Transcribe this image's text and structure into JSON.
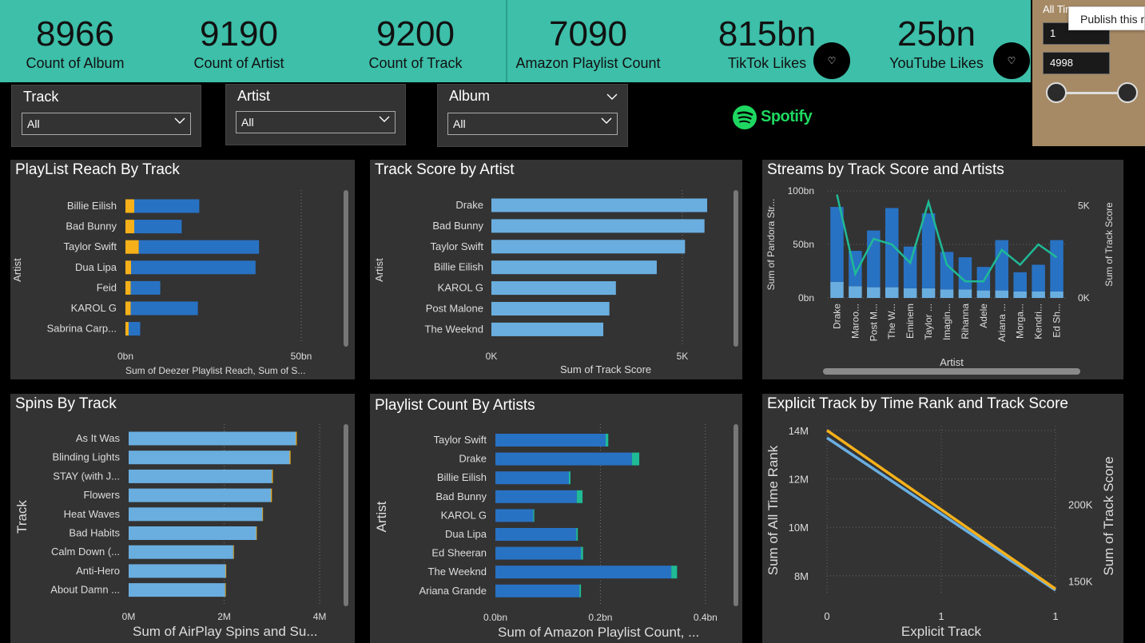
{
  "kpis": [
    {
      "value": "8966",
      "label": "Count of Album"
    },
    {
      "value": "9190",
      "label": "Count of Artist"
    },
    {
      "value": "9200",
      "label": "Count of Track"
    },
    {
      "value": "7090",
      "label": "Amazon Playlist Count"
    },
    {
      "value": "815bn",
      "label": "TikTok Likes"
    },
    {
      "value": "25bn",
      "label": "YouTube Likes"
    }
  ],
  "slicers": {
    "track": {
      "title": "Track",
      "value": "All"
    },
    "artist": {
      "title": "Artist",
      "value": "All"
    },
    "album": {
      "title": "Album",
      "value": "All"
    }
  },
  "brand": {
    "name": "Spotify",
    "color": "#1ed760"
  },
  "range_filter": {
    "title": "All Time",
    "min_value": "1",
    "max_value": "4998"
  },
  "tooltip": {
    "text": "Publish this report"
  },
  "colors": {
    "teal": "#3dbfa9",
    "blue_dark": "#2872c4",
    "blue_light": "#6aaee0",
    "orange": "#f6b11a",
    "green": "#1fba96",
    "panel": "#333333"
  },
  "chart_data": [
    {
      "id": "playlist-reach",
      "type": "bar",
      "orientation": "horizontal",
      "title": "PlayList Reach By Track",
      "ylabel": "Artist",
      "xlabel": "Sum of Deezer Playlist Reach, Sum of S...",
      "categories": [
        "Billie Eilish",
        "Bad Bunny",
        "Taylor Swift",
        "Dua Lipa",
        "Feid",
        "KAROL G",
        "Sabrina Carp..."
      ],
      "series": [
        {
          "color": "#f6b11a",
          "values": [
            2.5,
            2.5,
            3.8,
            1.6,
            1.5,
            1.5,
            0.9
          ]
        },
        {
          "color": "#2872c4",
          "values": [
            18.5,
            13.5,
            34.2,
            35.4,
            8.4,
            19.1,
            3.3
          ]
        }
      ],
      "stacked": true,
      "xlim": [
        0,
        55
      ],
      "xticks": [
        {
          "v": 0,
          "t": "0bn"
        },
        {
          "v": 50,
          "t": "50bn"
        }
      ]
    },
    {
      "id": "track-score",
      "type": "bar",
      "orientation": "horizontal",
      "title": "Track Score by Artist",
      "ylabel": "Artist",
      "xlabel": "Sum of Track Score",
      "categories": [
        "Drake",
        "Bad Bunny",
        "Taylor Swift",
        "Billie Eilish",
        "KAROL G",
        "Post Malone",
        "The Weeknd"
      ],
      "series": [
        {
          "color": "#6aaee0",
          "values": [
            5650,
            5580,
            5070,
            4330,
            3260,
            3090,
            2930
          ]
        }
      ],
      "xlim": [
        0,
        5900
      ],
      "xticks": [
        {
          "v": 0,
          "t": "0K"
        },
        {
          "v": 5000,
          "t": "5K"
        }
      ]
    },
    {
      "id": "streams",
      "type": "bar",
      "title": "Streams by Track Score and Artists",
      "xlabel": "Artist",
      "ylabel": "Sum of Pandora Str...",
      "y2label": "Sum of Track Score",
      "categories": [
        "Drake",
        "Maroo...",
        "Post M...",
        "The W...",
        "Eminem",
        "Taylor ...",
        "Imagin...",
        "Rihanna",
        "Adele",
        "Ariana ...",
        "Morga...",
        "Kendri...",
        "Ed Sh..."
      ],
      "series": [
        {
          "color": "#6aaee0",
          "values": [
            15,
            11,
            10,
            10,
            9,
            9,
            8,
            8,
            7,
            7,
            6,
            6,
            6
          ]
        },
        {
          "color": "#2872c4",
          "values": [
            70,
            33,
            53,
            74,
            39,
            70,
            35,
            30,
            22,
            47,
            18,
            25,
            48
          ]
        },
        {
          "color": "#1fba96",
          "axis": "right",
          "values": [
            5600,
            1300,
            3200,
            2900,
            1900,
            5200,
            1800,
            900,
            900,
            2600,
            1800,
            2900,
            2200
          ]
        }
      ],
      "stacked": true,
      "ylim": [
        0,
        100
      ],
      "y2lim": [
        0,
        5800
      ],
      "yticks": [
        {
          "v": 0,
          "t": "0bn"
        },
        {
          "v": 50,
          "t": "50bn"
        },
        {
          "v": 100,
          "t": "100bn"
        }
      ],
      "y2ticks": [
        {
          "v": 0,
          "t": "0K"
        },
        {
          "v": 5000,
          "t": "5K"
        }
      ]
    },
    {
      "id": "spins",
      "type": "bar",
      "orientation": "horizontal",
      "title": "Spins By Track",
      "ylabel": "Track",
      "xlabel": "Sum of AirPlay Spins and Su...",
      "categories": [
        "As It Was",
        "Blinding Lights",
        "STAY (with J...",
        "Flowers",
        "Heat Waves",
        "Bad Habits",
        "Calm Down (...",
        "Anti-Hero",
        "About Damn ..."
      ],
      "series": [
        {
          "color": "#6aaee0",
          "values": [
            3.5,
            3.37,
            3.0,
            2.98,
            2.8,
            2.67,
            2.19,
            2.03,
            2.02
          ]
        },
        {
          "color": "#f6b11a",
          "values": [
            0.02,
            0.02,
            0.02,
            0.02,
            0.01,
            0.01,
            0.01,
            0.01,
            0.01
          ]
        }
      ],
      "stacked": true,
      "xlim": [
        0,
        4.3
      ],
      "xticks": [
        {
          "v": 0,
          "t": "0M"
        },
        {
          "v": 2,
          "t": "2M"
        },
        {
          "v": 4,
          "t": "4M"
        }
      ]
    },
    {
      "id": "playlist-count",
      "type": "bar",
      "orientation": "horizontal",
      "title": "Playlist Count By Artists",
      "ylabel": "Artist",
      "xlabel": "Sum of Amazon Playlist Count, ...",
      "categories": [
        "Taylor Swift",
        "Drake",
        "Billie Eilish",
        "Bad Bunny",
        "KAROL G",
        "Dua Lipa",
        "Ed Sheeran",
        "The Weeknd",
        "Ariana Grande"
      ],
      "series": [
        {
          "color": "#2872c4",
          "values": [
            0.21,
            0.26,
            0.14,
            0.155,
            0.072,
            0.154,
            0.163,
            0.335,
            0.16
          ]
        },
        {
          "color": "#1fba96",
          "values": [
            0.005,
            0.014,
            0.003,
            0.011,
            0.002,
            0.003,
            0.004,
            0.011,
            0.003
          ]
        }
      ],
      "stacked": true,
      "xlim": [
        0,
        0.42
      ],
      "xticks": [
        {
          "v": 0,
          "t": "0.0bn"
        },
        {
          "v": 0.2,
          "t": "0.2bn"
        },
        {
          "v": 0.4,
          "t": "0.4bn"
        }
      ]
    },
    {
      "id": "explicit",
      "type": "line",
      "title": "Explicit Track by Time Rank and Track Score",
      "xlabel": "Explicit Track",
      "ylabel": "Sum of All Time Rank",
      "y2label": "Sum of Track Score",
      "series": [
        {
          "color": "#6aaee0",
          "x": [
            0,
            1
          ],
          "values": [
            13.7,
            7.4
          ]
        },
        {
          "color": "#f6b11a",
          "axis": "right",
          "x": [
            0,
            1
          ],
          "values": [
            248000,
            145000
          ]
        }
      ],
      "xlim": [
        0,
        1
      ],
      "ylim": [
        7.2,
        14.2
      ],
      "y2lim": [
        141000,
        251000
      ],
      "xticks": [
        {
          "v": 0,
          "t": "0"
        },
        {
          "v": 0.5,
          "t": "1"
        },
        {
          "v": 1,
          "t": "1"
        }
      ],
      "yticks": [
        {
          "v": 8,
          "t": "8M"
        },
        {
          "v": 10,
          "t": "10M"
        },
        {
          "v": 12,
          "t": "12M"
        },
        {
          "v": 14,
          "t": "14M"
        }
      ],
      "y2ticks": [
        {
          "v": 150000,
          "t": "150K"
        },
        {
          "v": 200000,
          "t": "200K"
        }
      ]
    }
  ]
}
